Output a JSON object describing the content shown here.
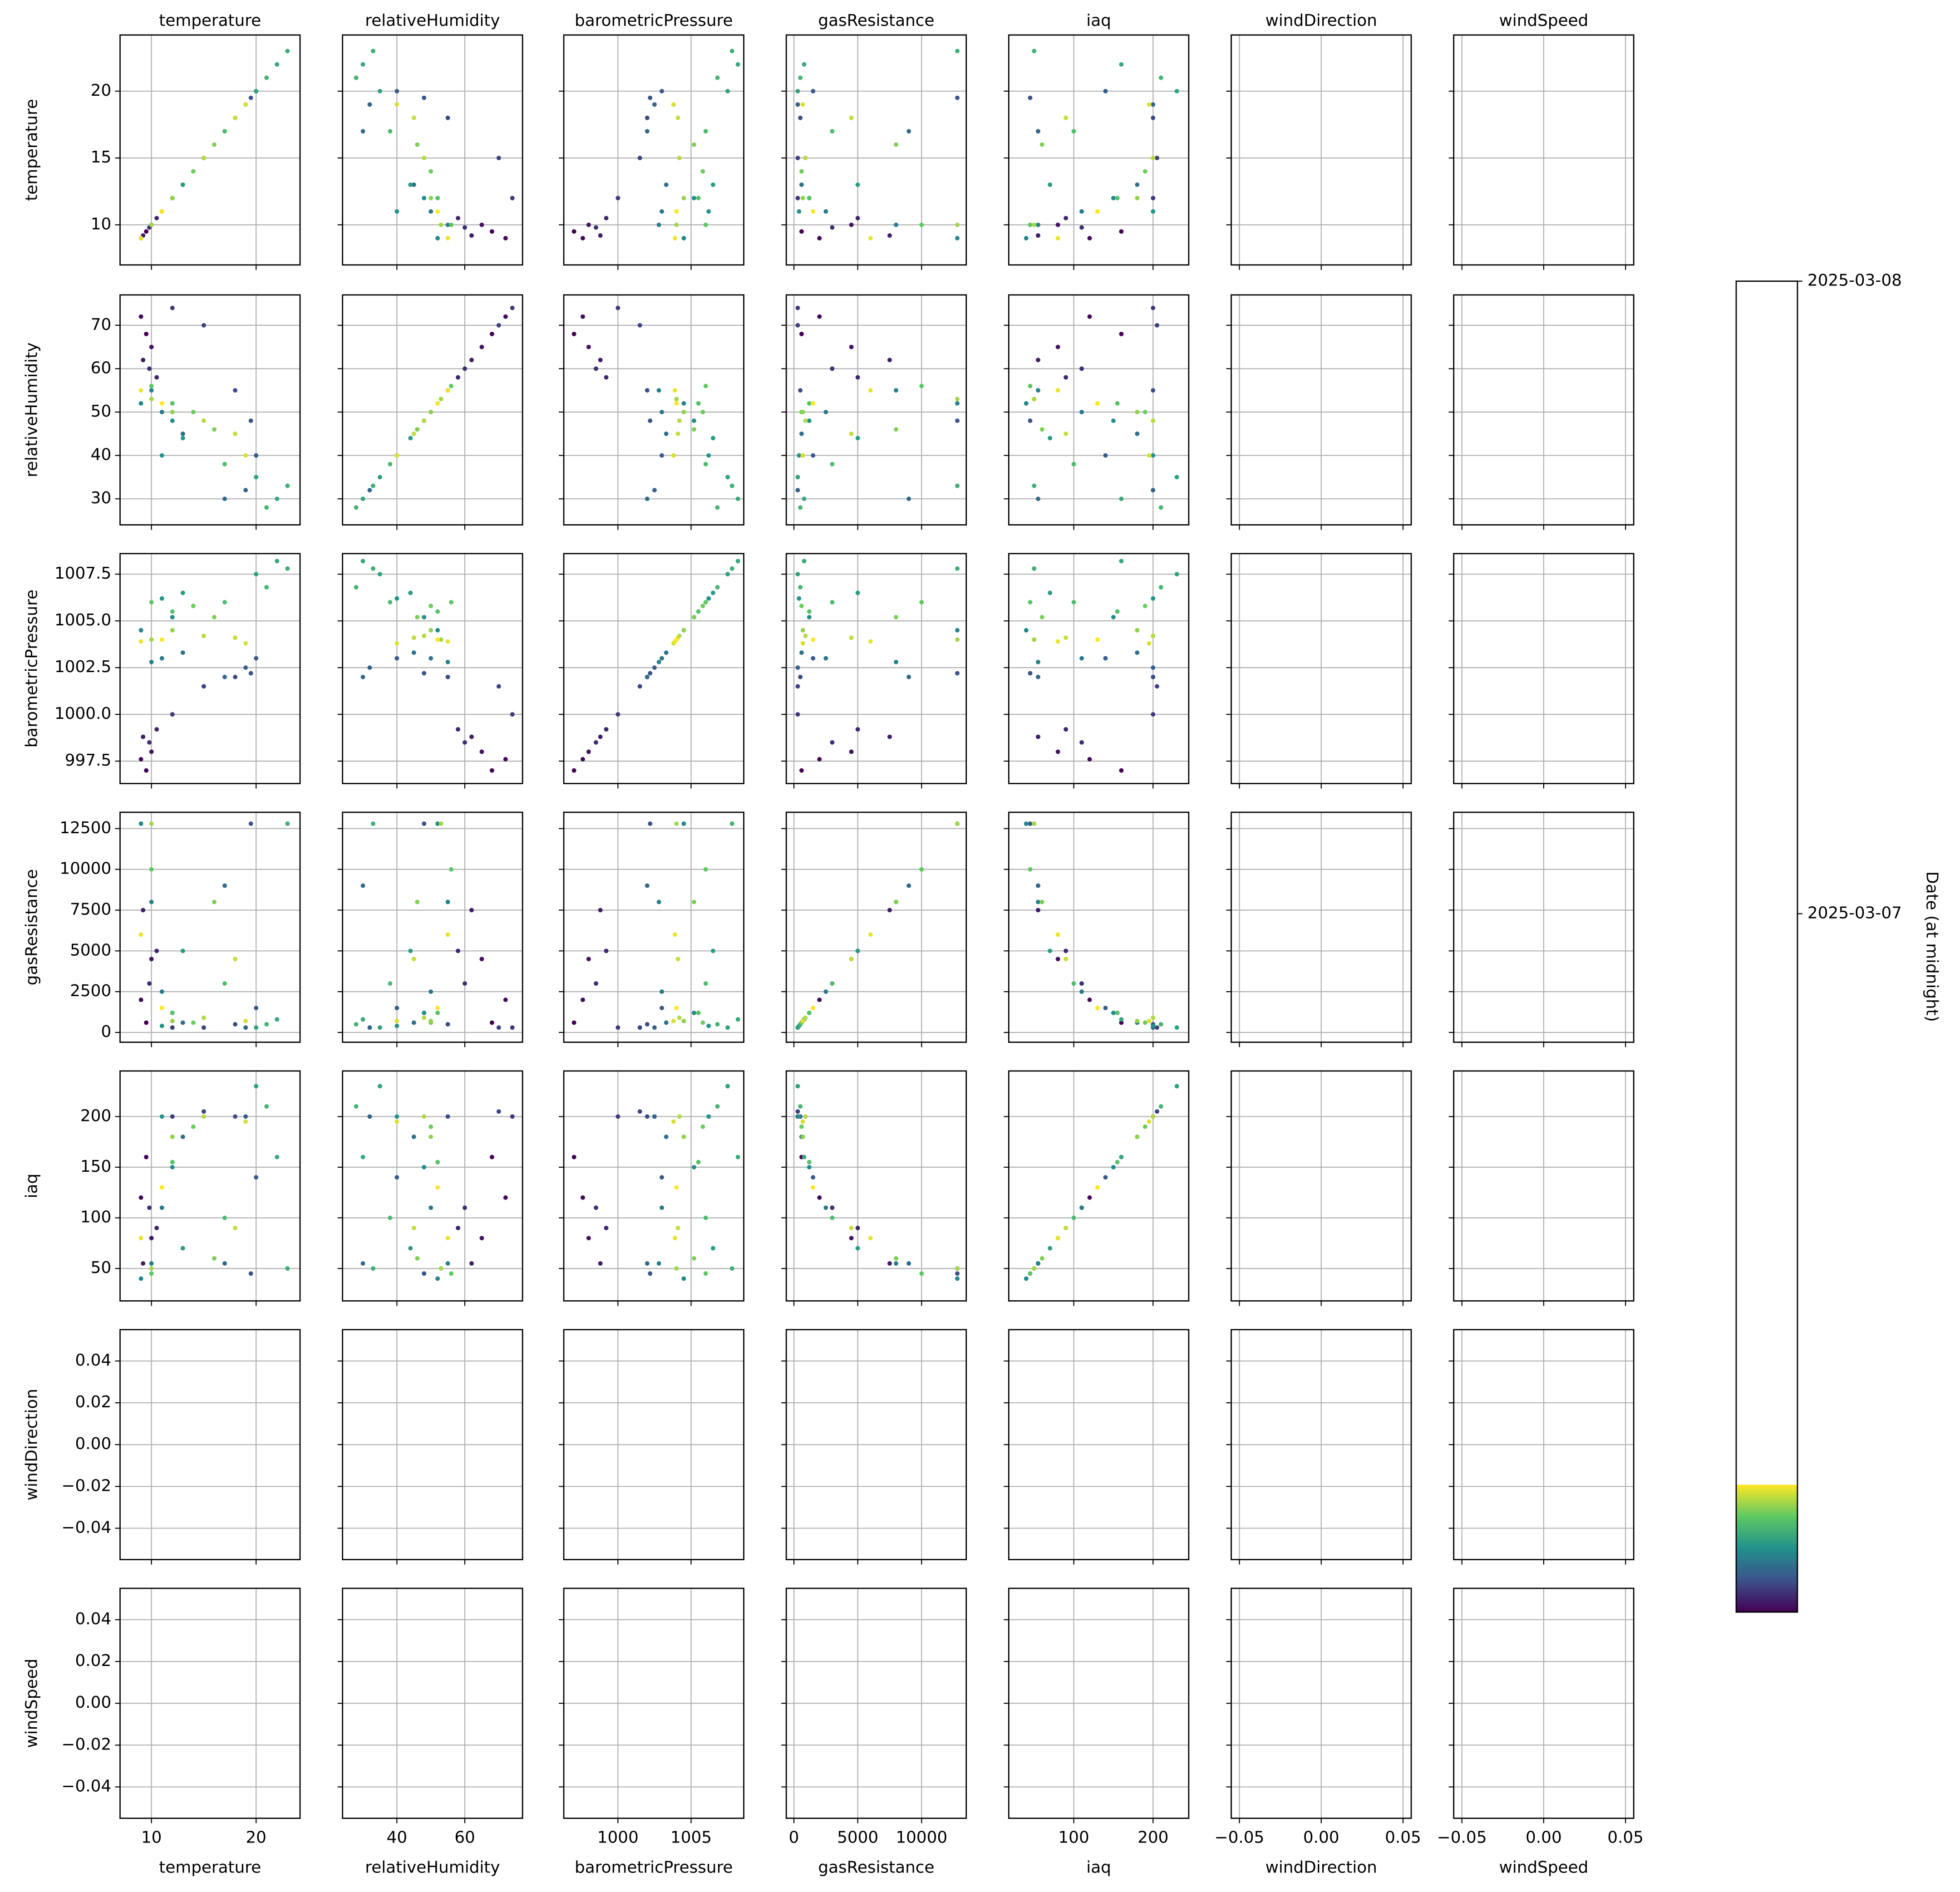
{
  "chart_data": {
    "type": "scatter_matrix",
    "colormap": "viridis",
    "grid": true,
    "variables": [
      {
        "name": "temperature",
        "lim": [
          7,
          24.2
        ],
        "xticks": [
          10,
          20
        ],
        "yticks": [
          10,
          15,
          20
        ],
        "values": [
          9.5,
          9.0,
          10.0,
          9.2,
          10.5,
          9.8,
          12,
          15,
          18,
          19.5,
          20,
          19,
          17,
          13,
          11,
          10,
          9,
          12,
          11,
          13,
          20,
          22,
          23,
          21,
          17,
          12,
          10,
          14,
          16,
          12,
          10,
          15,
          18,
          19,
          9,
          11
        ]
      },
      {
        "name": "relativeHumidity",
        "lim": [
          24,
          77
        ],
        "xticks": [
          40,
          60
        ],
        "yticks": [
          30,
          40,
          50,
          60,
          70
        ],
        "values": [
          68,
          72,
          65,
          62,
          58,
          60,
          74,
          70,
          55,
          48,
          40,
          32,
          30,
          45,
          50,
          55,
          52,
          48,
          40,
          44,
          35,
          30,
          33,
          28,
          38,
          52,
          56,
          50,
          46,
          50,
          53,
          48,
          45,
          40,
          55,
          52
        ]
      },
      {
        "name": "barometricPressure",
        "lim": [
          996.3,
          1008.6
        ],
        "xticks": [
          1000,
          1005
        ],
        "yticks": [
          {
            "value": 997.5,
            "label": "997.5"
          },
          {
            "value": 1000,
            "label": "1000.0"
          },
          {
            "value": 1002.5,
            "label": "1002.5"
          },
          {
            "value": 1005,
            "label": "1005.0"
          },
          {
            "value": 1007.5,
            "label": "1007.5"
          }
        ],
        "values": [
          997.0,
          997.6,
          998.0,
          998.8,
          999.2,
          998.5,
          1000.0,
          1001.5,
          1002.0,
          1002.2,
          1003.0,
          1002.5,
          1002.0,
          1003.3,
          1003.0,
          1002.8,
          1004.5,
          1005.2,
          1006.2,
          1006.5,
          1007.5,
          1008.2,
          1007.8,
          1006.8,
          1006.0,
          1005.5,
          1006.0,
          1005.8,
          1005.2,
          1004.5,
          1004.0,
          1004.2,
          1004.1,
          1003.8,
          1003.9,
          1004.0
        ]
      },
      {
        "name": "gasResistance",
        "lim": [
          -600,
          13500
        ],
        "xticks": [
          0,
          5000,
          10000
        ],
        "yticks": [
          0,
          2500,
          5000,
          7500,
          10000,
          12500
        ],
        "values": [
          600,
          2000,
          4500,
          7500,
          5000,
          3000,
          300,
          300,
          500,
          12800,
          1500,
          300,
          9000,
          600,
          2500,
          8000,
          12800,
          1200,
          400,
          5000,
          300,
          800,
          12800,
          500,
          3000,
          1200,
          10000,
          600,
          8000,
          700,
          12800,
          900,
          4500,
          700,
          6000,
          1500
        ]
      },
      {
        "name": "iaq",
        "lim": [
          18,
          245
        ],
        "xticks": [
          100,
          200
        ],
        "yticks": [
          50,
          100,
          150,
          200
        ],
        "values": [
          160,
          120,
          80,
          55,
          90,
          110,
          200,
          205,
          200,
          45,
          140,
          200,
          55,
          180,
          110,
          55,
          40,
          150,
          200,
          70,
          230,
          160,
          50,
          210,
          100,
          155,
          45,
          190,
          60,
          180,
          50,
          200,
          90,
          195,
          80,
          130
        ]
      },
      {
        "name": "windDirection",
        "lim": [
          -0.055,
          0.055
        ],
        "xticks": [
          {
            "value": -0.05,
            "label": "−0.05"
          },
          {
            "value": 0,
            "label": "0.00"
          },
          {
            "value": 0.05,
            "label": "0.05"
          }
        ],
        "yticks": [
          {
            "value": -0.04,
            "label": "−0.04"
          },
          {
            "value": -0.02,
            "label": "−0.02"
          },
          {
            "value": 0,
            "label": "0.00"
          },
          {
            "value": 0.02,
            "label": "0.02"
          },
          {
            "value": 0.04,
            "label": "0.04"
          }
        ],
        "values": [
          null,
          null,
          null,
          null,
          null,
          null,
          null,
          null,
          null,
          null,
          null,
          null,
          null,
          null,
          null,
          null,
          null,
          null,
          null,
          null,
          null,
          null,
          null,
          null,
          null,
          null,
          null,
          null,
          null,
          null,
          null,
          null,
          null,
          null,
          null,
          null
        ]
      },
      {
        "name": "windSpeed",
        "lim": [
          -0.055,
          0.055
        ],
        "xticks": [
          {
            "value": -0.05,
            "label": "−0.05"
          },
          {
            "value": 0,
            "label": "0.00"
          },
          {
            "value": 0.05,
            "label": "0.05"
          }
        ],
        "yticks": [
          {
            "value": -0.04,
            "label": "−0.04"
          },
          {
            "value": -0.02,
            "label": "−0.02"
          },
          {
            "value": 0,
            "label": "0.00"
          },
          {
            "value": 0.02,
            "label": "0.02"
          },
          {
            "value": 0.04,
            "label": "0.04"
          }
        ],
        "values": [
          null,
          null,
          null,
          null,
          null,
          null,
          null,
          null,
          null,
          null,
          null,
          null,
          null,
          null,
          null,
          null,
          null,
          null,
          null,
          null,
          null,
          null,
          null,
          null,
          null,
          null,
          null,
          null,
          null,
          null,
          null,
          null,
          null,
          null,
          null,
          null
        ]
      }
    ],
    "colorbar": {
      "label": "Date (at midnight)",
      "lim": [
        "2025-03-05T21:30",
        "2025-03-08T00:00"
      ],
      "ticks": [
        "2025-03-07",
        "2025-03-08"
      ],
      "color_range": [
        "2025-03-05T21:30",
        "2025-03-06T02:20"
      ]
    }
  }
}
